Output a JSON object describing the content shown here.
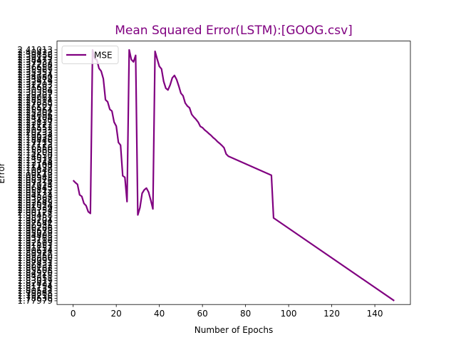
{
  "chart_data": {
    "type": "line",
    "title": "Mean Squared Error(LSTM):[GOOG.csv]",
    "xlabel": "Number of Epochs",
    "ylabel": "Error",
    "xlim": [
      -7.5,
      156.5
    ],
    "xticks": [
      0,
      20,
      40,
      60,
      80,
      100,
      120,
      140
    ],
    "xtick_labels": [
      "0",
      "20",
      "40",
      "60",
      "80",
      "100",
      "120",
      "140"
    ],
    "ylim": [
      -1.5,
      103.5
    ],
    "ytick_labels": [
      "1.77979",
      "1.78636",
      "1.79210",
      "1.79868",
      "1.80541",
      "1.81135",
      "1.81794",
      "1.82421",
      "1.83019",
      "1.83651",
      "1.84318",
      "1.84920",
      "1.85508",
      "1.86162",
      "1.86832",
      "1.87431",
      "1.88095",
      "1.88660",
      "1.89350",
      "1.89927",
      "1.90614",
      "1.91152",
      "1.91851",
      "1.92503",
      "1.93116",
      "1.93763",
      "1.94408",
      "1.95029",
      "1.95678",
      "1.96266",
      "1.96935",
      "1.97542",
      "1.98204",
      "1.98781",
      "1.99458",
      "2.00127",
      "2.00754",
      "2.01339",
      "2.02024",
      "2.02645",
      "2.03288",
      "2.03867",
      "2.04534",
      "2.05177",
      "2.05812",
      "2.06443",
      "2.07024",
      "2.07714",
      "2.08326",
      "2.08945",
      "2.09543",
      "2.10218",
      "2.10840",
      "2.11437",
      "2.12108",
      "2.12744",
      "2.13328",
      "2.14017",
      "2.14650",
      "2.15209",
      "2.15860",
      "2.16556",
      "2.17123",
      "2.17715",
      "2.18446",
      "2.19038",
      "2.19634",
      "2.20233",
      "2.20933",
      "2.21552",
      "2.22122",
      "2.22817",
      "2.23430",
      "2.24104",
      "2.24696",
      "2.25302",
      "2.25964",
      "2.26521",
      "2.27209",
      "2.27885",
      "2.28514",
      "2.29061",
      "2.29702",
      "2.30359",
      "2.30984",
      "2.31682",
      "2.32203",
      "2.32919",
      "2.33474",
      "2.34080",
      "2.34724",
      "2.35351",
      "2.35969",
      "2.36657",
      "2.37288",
      "2.37932",
      "2.38477",
      "2.39125",
      "2.39838",
      "2.40423",
      "2.41013"
    ],
    "series": [
      {
        "name": "MSE",
        "color": "#800080",
        "x": [
          0,
          1,
          2,
          3,
          4,
          5,
          6,
          7,
          8,
          9,
          10,
          11,
          12,
          13,
          14,
          15,
          16,
          17,
          18,
          19,
          20,
          21,
          22,
          23,
          24,
          25,
          26,
          27,
          28,
          29,
          30,
          31,
          32,
          33,
          34,
          35,
          36,
          37,
          38,
          39,
          40,
          41,
          42,
          43,
          44,
          45,
          46,
          47,
          48,
          49,
          50,
          51,
          52,
          53,
          54,
          55,
          56,
          57,
          58,
          59,
          60,
          61,
          62,
          63,
          64,
          65,
          66,
          67,
          68,
          69,
          70,
          71,
          72,
          92,
          93,
          149
        ],
        "values": [
          48.0,
          47.1,
          46.4,
          42.2,
          41.6,
          38.8,
          37.9,
          35.5,
          34.8,
          100.0,
          96.5,
          96.0,
          92.6,
          91.5,
          88.5,
          80.1,
          79.3,
          76.3,
          75.6,
          71.2,
          69.6,
          63.1,
          62.0,
          49.8,
          49.2,
          39.5,
          100.0,
          96.1,
          95.2,
          97.8,
          34.2,
          37.1,
          42.8,
          44.2,
          44.9,
          43.3,
          40.1,
          36.6,
          99.4,
          96.3,
          93.4,
          92.4,
          87.4,
          84.7,
          84.0,
          86.0,
          88.8,
          89.8,
          88.2,
          85.6,
          82.7,
          81.7,
          78.8,
          77.6,
          76.9,
          74.3,
          73.2,
          72.3,
          71.2,
          69.5,
          69.0,
          68.1,
          67.4,
          66.6,
          65.9,
          65.0,
          64.3,
          63.4,
          62.7,
          61.9,
          61.0,
          58.5,
          57.6,
          50.0,
          33.0,
          0.0
        ]
      }
    ],
    "legend": "upper-left",
    "grid": false
  }
}
